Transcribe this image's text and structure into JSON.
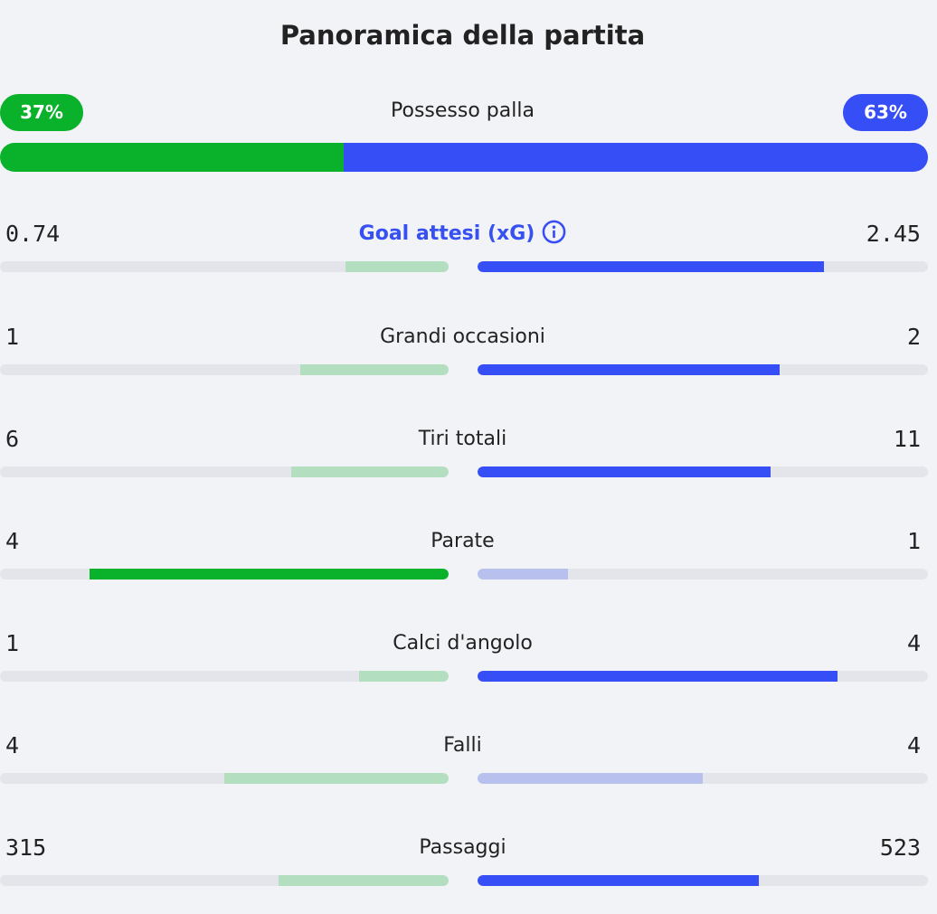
{
  "title": "Panoramica della partita",
  "colors": {
    "home_strong": "#0ab22c",
    "home_weak": "#b3dfc0",
    "away_strong": "#364ef5",
    "away_weak": "#b8c0ee",
    "track": "#e4e5ea"
  },
  "possession": {
    "label": "Possesso palla",
    "home_text": "37%",
    "away_text": "63%",
    "home": 37,
    "away": 63
  },
  "stats": [
    {
      "label": "Goal attesi (xG)",
      "home": "0.74",
      "away": "2.45",
      "home_fill": 0.23,
      "away_fill": 0.77,
      "winner": "away",
      "info": true
    },
    {
      "label": "Grandi occasioni",
      "home": "1",
      "away": "2",
      "home_fill": 0.33,
      "away_fill": 0.67,
      "winner": "away"
    },
    {
      "label": "Tiri totali",
      "home": "6",
      "away": "11",
      "home_fill": 0.35,
      "away_fill": 0.65,
      "winner": "away"
    },
    {
      "label": "Parate",
      "home": "4",
      "away": "1",
      "home_fill": 0.8,
      "away_fill": 0.2,
      "winner": "home"
    },
    {
      "label": "Calci d'angolo",
      "home": "1",
      "away": "4",
      "home_fill": 0.2,
      "away_fill": 0.8,
      "winner": "away"
    },
    {
      "label": "Falli",
      "home": "4",
      "away": "4",
      "home_fill": 0.5,
      "away_fill": 0.5,
      "winner": "none"
    },
    {
      "label": "Passaggi",
      "home": "315",
      "away": "523",
      "home_fill": 0.38,
      "away_fill": 0.625,
      "winner": "away"
    }
  ]
}
